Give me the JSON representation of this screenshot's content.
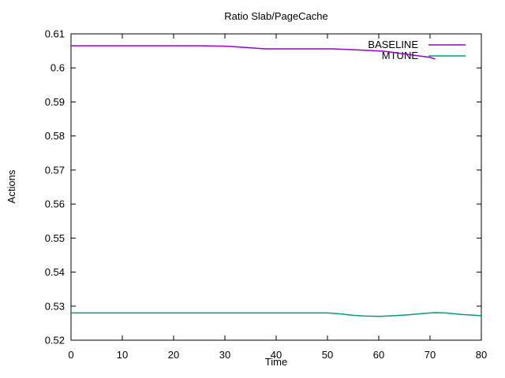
{
  "window": {
    "background": "#ffffff",
    "border_color": "#000000",
    "text_color": "#000000"
  },
  "chart_data": {
    "type": "line",
    "title": "Ratio Slab/PageCache",
    "xlabel": "Time",
    "ylabel": "Actions",
    "xlim": [
      0,
      80
    ],
    "ylim": [
      0.52,
      0.61
    ],
    "grid": false,
    "legend_position": "top-right-inside",
    "x_ticks": [
      0,
      10,
      20,
      30,
      40,
      50,
      60,
      70,
      80
    ],
    "x_tick_labels": [
      "0",
      "10",
      "20",
      "30",
      "40",
      "50",
      "60",
      "70",
      "80"
    ],
    "y_ticks": [
      0.52,
      0.53,
      0.54,
      0.55,
      0.56,
      0.57,
      0.58,
      0.59,
      0.6,
      0.61
    ],
    "y_tick_labels": [
      "0.52",
      "0.53",
      "0.54",
      "0.55",
      "0.56",
      "0.57",
      "0.58",
      "0.59",
      "0.6",
      "0.61"
    ],
    "series": [
      {
        "name": "BASELINE",
        "color": "#9400D3",
        "x": [
          0,
          5,
          10,
          15,
          20,
          25,
          30,
          32,
          34,
          36,
          38,
          51,
          54,
          57,
          61,
          64,
          68,
          70,
          71
        ],
        "y": [
          0.6065,
          0.6065,
          0.6065,
          0.6065,
          0.6065,
          0.6065,
          0.6064,
          0.6062,
          0.606,
          0.6058,
          0.6056,
          0.6056,
          0.6054,
          0.6052,
          0.6049,
          0.6043,
          0.6035,
          0.6031,
          0.6026
        ]
      },
      {
        "name": "MTUNE",
        "color": "#009E73",
        "x": [
          0,
          5,
          10,
          15,
          20,
          25,
          30,
          35,
          40,
          45,
          50,
          52,
          55,
          57,
          60,
          63,
          66,
          69,
          71,
          73,
          76,
          78,
          80
        ],
        "y": [
          0.528,
          0.528,
          0.528,
          0.528,
          0.528,
          0.528,
          0.528,
          0.528,
          0.528,
          0.528,
          0.528,
          0.5278,
          0.5273,
          0.5271,
          0.527,
          0.5272,
          0.5275,
          0.5279,
          0.5281,
          0.528,
          0.5276,
          0.5274,
          0.5272
        ]
      }
    ]
  }
}
